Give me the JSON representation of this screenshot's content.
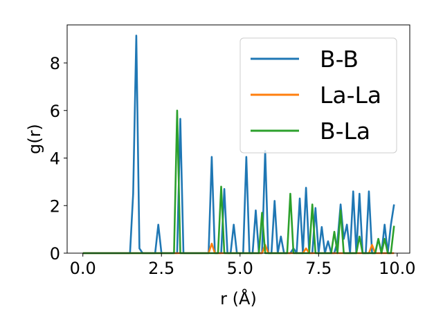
{
  "chart_data": {
    "type": "line",
    "xlabel": "r (Å)",
    "ylabel": "g(r)",
    "xlim": [
      -0.5,
      10.4
    ],
    "ylim": [
      0,
      9.6
    ],
    "xticks": [
      "0.0",
      "2.5",
      "5.0",
      "7.5",
      "10.0"
    ],
    "yticks": [
      "0",
      "2",
      "4",
      "6",
      "8"
    ],
    "grid": false,
    "legend_position": "top-right",
    "series": [
      {
        "name": "B-B",
        "color": "#1f77b4",
        "points": [
          [
            0.0,
            0
          ],
          [
            1.5,
            0
          ],
          [
            1.6,
            2.5
          ],
          [
            1.7,
            9.15
          ],
          [
            1.8,
            0.2
          ],
          [
            1.9,
            0
          ],
          [
            2.3,
            0
          ],
          [
            2.4,
            1.2
          ],
          [
            2.5,
            0
          ],
          [
            3.0,
            0
          ],
          [
            3.1,
            5.65
          ],
          [
            3.2,
            0
          ],
          [
            4.0,
            0
          ],
          [
            4.1,
            4.05
          ],
          [
            4.2,
            0
          ],
          [
            4.4,
            0
          ],
          [
            4.5,
            2.7
          ],
          [
            4.6,
            0
          ],
          [
            4.7,
            0
          ],
          [
            4.8,
            1.2
          ],
          [
            4.9,
            0
          ],
          [
            5.1,
            0
          ],
          [
            5.2,
            4.05
          ],
          [
            5.3,
            0
          ],
          [
            5.4,
            0
          ],
          [
            5.5,
            1.8
          ],
          [
            5.6,
            0
          ],
          [
            5.7,
            0
          ],
          [
            5.8,
            4.3
          ],
          [
            5.9,
            0
          ],
          [
            6.0,
            0
          ],
          [
            6.1,
            2.2
          ],
          [
            6.2,
            0
          ],
          [
            6.3,
            0.7
          ],
          [
            6.4,
            0
          ],
          [
            6.6,
            0
          ],
          [
            6.7,
            0.2
          ],
          [
            6.8,
            0
          ],
          [
            6.9,
            2.3
          ],
          [
            7.0,
            0
          ],
          [
            7.1,
            2.75
          ],
          [
            7.2,
            0
          ],
          [
            7.3,
            0
          ],
          [
            7.4,
            1.9
          ],
          [
            7.5,
            0
          ],
          [
            7.6,
            1.1
          ],
          [
            7.7,
            0
          ],
          [
            7.8,
            0.5
          ],
          [
            7.9,
            0
          ],
          [
            8.0,
            0
          ],
          [
            8.1,
            0.5
          ],
          [
            8.2,
            2.05
          ],
          [
            8.3,
            0.6
          ],
          [
            8.4,
            1.2
          ],
          [
            8.5,
            0
          ],
          [
            8.6,
            2.6
          ],
          [
            8.7,
            0
          ],
          [
            8.8,
            2.5
          ],
          [
            8.9,
            0
          ],
          [
            9.0,
            0
          ],
          [
            9.1,
            2.6
          ],
          [
            9.2,
            0
          ],
          [
            9.3,
            0
          ],
          [
            9.4,
            0.6
          ],
          [
            9.5,
            0
          ],
          [
            9.6,
            1.2
          ],
          [
            9.7,
            0
          ],
          [
            9.8,
            1.2
          ],
          [
            9.9,
            2.05
          ]
        ]
      },
      {
        "name": "La-La",
        "color": "#ff7f0e",
        "points": [
          [
            0.0,
            0
          ],
          [
            4.0,
            0
          ],
          [
            4.1,
            0.4
          ],
          [
            4.2,
            0
          ],
          [
            5.7,
            0
          ],
          [
            5.8,
            0.35
          ],
          [
            5.9,
            0
          ],
          [
            7.0,
            0
          ],
          [
            7.1,
            0.2
          ],
          [
            7.2,
            0
          ],
          [
            9.1,
            0
          ],
          [
            9.2,
            0.35
          ],
          [
            9.3,
            0
          ],
          [
            9.9,
            0
          ]
        ]
      },
      {
        "name": "B-La",
        "color": "#2ca02c",
        "points": [
          [
            0.0,
            0
          ],
          [
            2.9,
            0
          ],
          [
            3.0,
            6.0
          ],
          [
            3.1,
            0
          ],
          [
            4.3,
            0
          ],
          [
            4.4,
            2.8
          ],
          [
            4.5,
            0
          ],
          [
            5.6,
            0
          ],
          [
            5.7,
            1.7
          ],
          [
            5.8,
            0
          ],
          [
            6.5,
            0
          ],
          [
            6.6,
            2.5
          ],
          [
            6.7,
            0
          ],
          [
            7.2,
            0
          ],
          [
            7.3,
            2.05
          ],
          [
            7.4,
            0
          ],
          [
            7.9,
            0
          ],
          [
            8.0,
            0.9
          ],
          [
            8.1,
            0
          ],
          [
            8.2,
            1.8
          ],
          [
            8.3,
            0
          ],
          [
            8.7,
            0
          ],
          [
            8.8,
            0.7
          ],
          [
            8.9,
            0
          ],
          [
            9.3,
            0
          ],
          [
            9.4,
            0.6
          ],
          [
            9.5,
            0
          ],
          [
            9.6,
            0.6
          ],
          [
            9.7,
            0
          ],
          [
            9.8,
            0
          ],
          [
            9.9,
            1.15
          ]
        ]
      }
    ]
  }
}
